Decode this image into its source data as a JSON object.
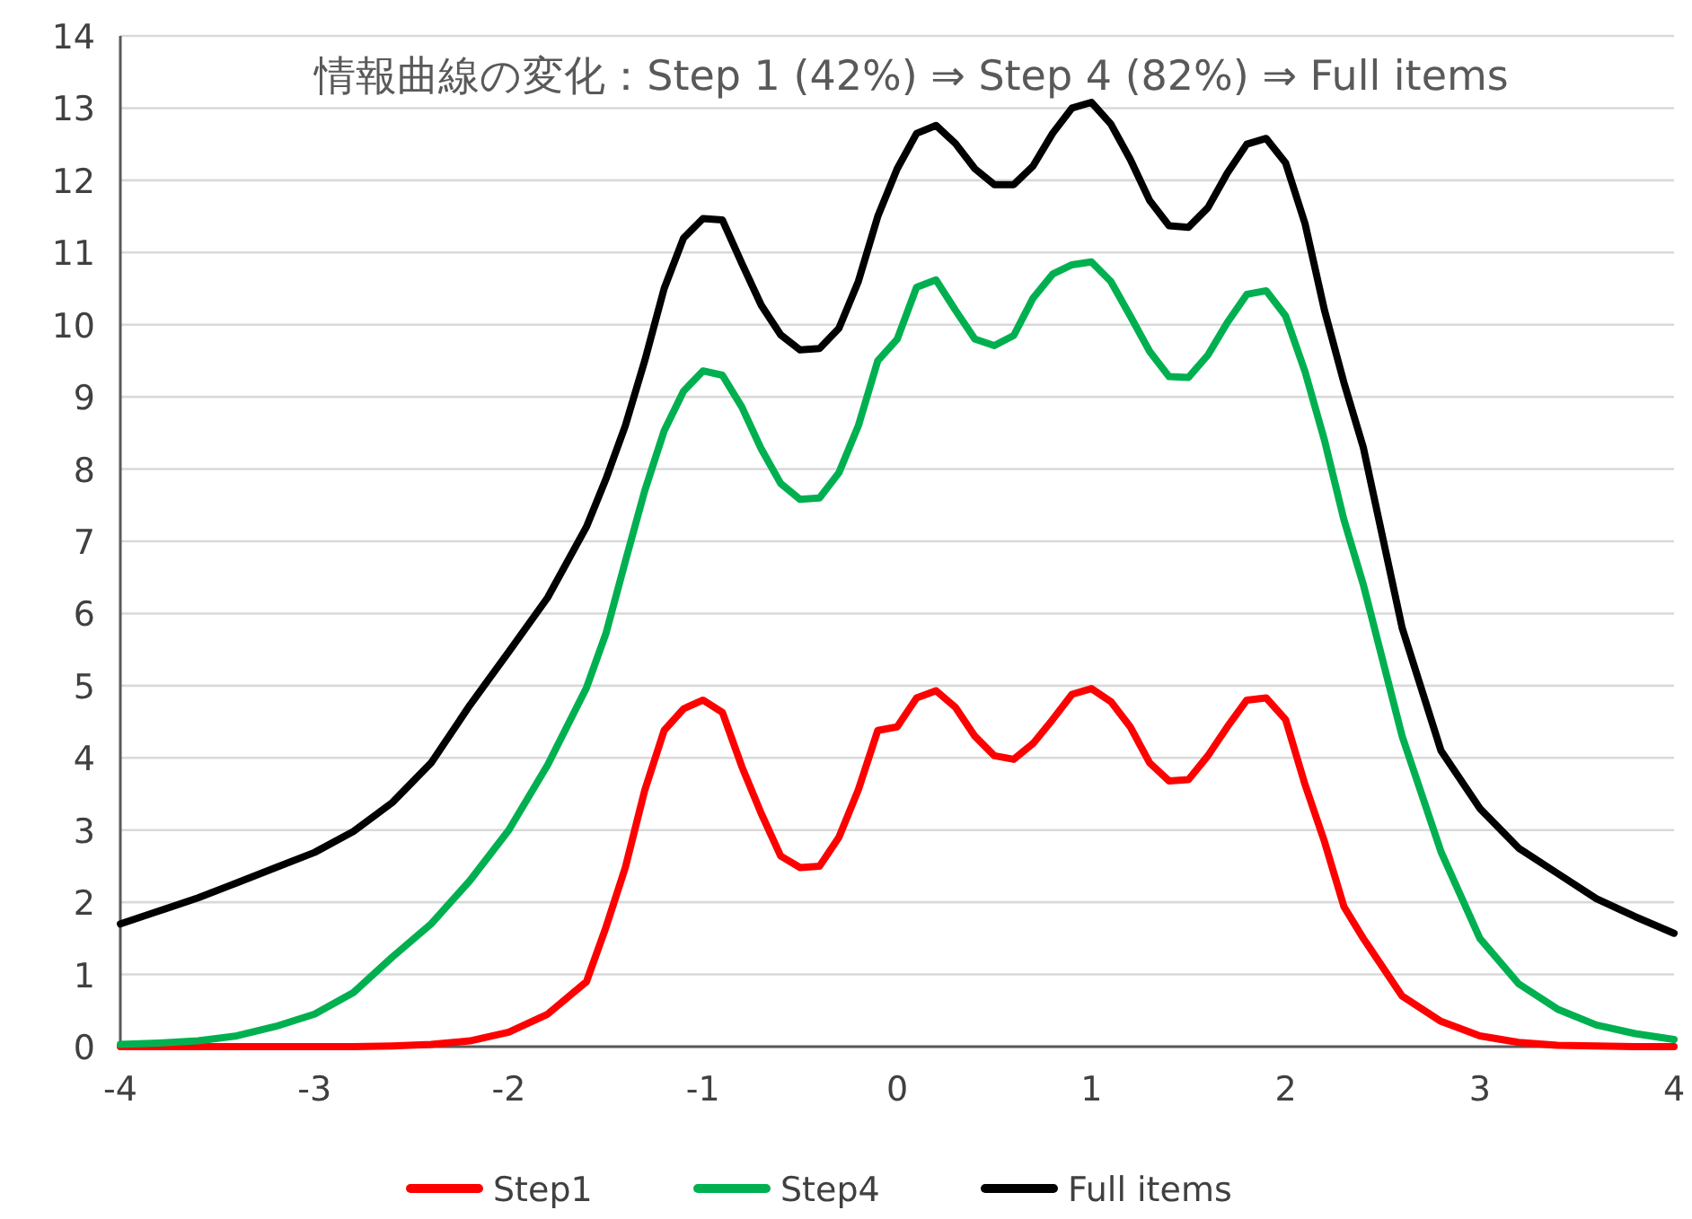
{
  "chart_data": {
    "type": "line",
    "title": "情報曲線の変化：Step 1 (42%) ⇒ Step 4 (82%) ⇒ Full items",
    "x": [
      -4,
      -3.8,
      -3.6,
      -3.4,
      -3.2,
      -3.0,
      -2.8,
      -2.6,
      -2.4,
      -2.2,
      -2.0,
      -1.8,
      -1.6,
      -1.5,
      -1.4,
      -1.3,
      -1.2,
      -1.1,
      -1.0,
      -0.9,
      -0.8,
      -0.7,
      -0.6,
      -0.5,
      -0.4,
      -0.3,
      -0.2,
      -0.1,
      0,
      0.1,
      0.2,
      0.3,
      0.4,
      0.5,
      0.6,
      0.7,
      0.8,
      0.9,
      1.0,
      1.1,
      1.2,
      1.3,
      1.4,
      1.5,
      1.6,
      1.7,
      1.8,
      1.9,
      2.0,
      2.1,
      2.2,
      2.3,
      2.4,
      2.6,
      2.8,
      3.0,
      3.2,
      3.4,
      3.6,
      3.8,
      4.0
    ],
    "series": [
      {
        "name": "Step1",
        "color": "#ff0000",
        "values": [
          0,
          0,
          0,
          0,
          0,
          0,
          0,
          0.01,
          0.03,
          0.08,
          0.2,
          0.45,
          0.9,
          1.65,
          2.48,
          3.55,
          4.38,
          4.68,
          4.8,
          4.63,
          3.88,
          3.23,
          2.64,
          2.48,
          2.5,
          2.9,
          3.56,
          4.38,
          4.43,
          4.83,
          4.93,
          4.7,
          4.3,
          4.03,
          3.98,
          4.2,
          4.53,
          4.88,
          4.96,
          4.78,
          4.43,
          3.93,
          3.68,
          3.7,
          4.03,
          4.43,
          4.8,
          4.83,
          4.53,
          3.63,
          2.84,
          1.94,
          1.5,
          0.7,
          0.35,
          0.15,
          0.06,
          0.02,
          0.01,
          0,
          0
        ]
      },
      {
        "name": "Step4",
        "color": "#00b050",
        "values": [
          0.03,
          0.05,
          0.08,
          0.15,
          0.28,
          0.45,
          0.75,
          1.24,
          1.7,
          2.3,
          3.0,
          3.9,
          4.97,
          5.72,
          6.72,
          7.7,
          8.53,
          9.08,
          9.36,
          9.3,
          8.86,
          8.28,
          7.8,
          7.58,
          7.6,
          7.95,
          8.6,
          9.5,
          9.8,
          10.52,
          10.62,
          10.2,
          9.8,
          9.71,
          9.85,
          10.37,
          10.7,
          10.83,
          10.87,
          10.6,
          10.12,
          9.63,
          9.28,
          9.27,
          9.58,
          10.03,
          10.42,
          10.47,
          10.12,
          9.35,
          8.4,
          7.3,
          6.4,
          4.3,
          2.7,
          1.5,
          0.87,
          0.52,
          0.3,
          0.18,
          0.1
        ]
      },
      {
        "name": "Full items",
        "color": "#000000",
        "values": [
          1.7,
          1.88,
          2.06,
          2.27,
          2.48,
          2.69,
          2.98,
          3.38,
          3.93,
          4.73,
          5.47,
          6.22,
          7.2,
          7.86,
          8.6,
          9.5,
          10.5,
          11.2,
          11.47,
          11.45,
          10.85,
          10.27,
          9.86,
          9.65,
          9.67,
          9.95,
          10.6,
          11.5,
          12.16,
          12.65,
          12.76,
          12.51,
          12.16,
          11.94,
          11.94,
          12.2,
          12.65,
          13.0,
          13.08,
          12.78,
          12.29,
          11.72,
          11.37,
          11.35,
          11.62,
          12.1,
          12.5,
          12.58,
          12.24,
          11.4,
          10.2,
          9.2,
          8.3,
          5.8,
          4.1,
          3.3,
          2.75,
          2.4,
          2.05,
          1.8,
          1.57
        ]
      }
    ],
    "xlim": [
      -4,
      4
    ],
    "xticks": [
      -4,
      -3,
      -2,
      -1,
      0,
      1,
      2,
      3,
      4
    ],
    "ylim": [
      0,
      14
    ],
    "yticks": [
      0,
      1,
      2,
      3,
      4,
      5,
      6,
      7,
      8,
      9,
      10,
      11,
      12,
      13,
      14
    ],
    "grid": "y",
    "legend": "bottom"
  }
}
